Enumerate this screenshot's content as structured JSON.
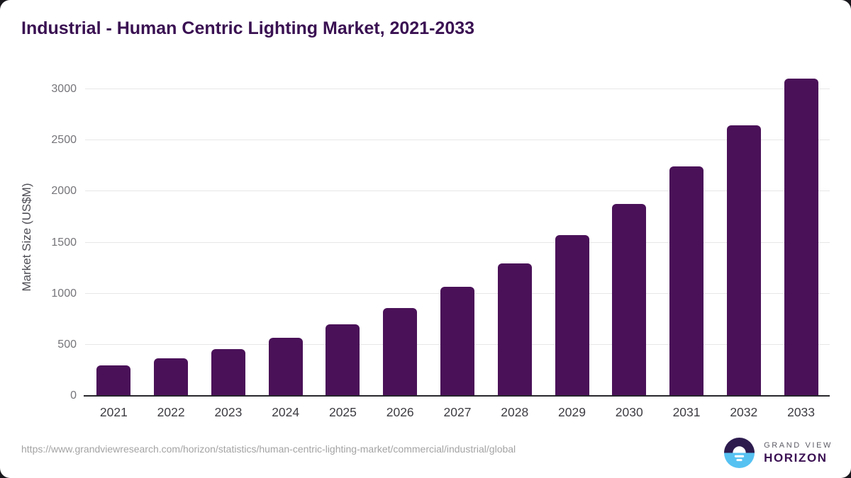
{
  "page": {
    "title": "Industrial - Human Centric Lighting Market, 2021-2033",
    "source_url": "https://www.grandviewresearch.com/horizon/statistics/human-centric-lighting-market/commercial/industrial/global",
    "background_color": "#17171c",
    "card_color": "#ffffff",
    "title_color": "#3a1152"
  },
  "brand": {
    "name_top": "GRAND VIEW",
    "name_bottom": "HORIZON",
    "logo_top_color": "#2d1b4e",
    "logo_bottom_color": "#56c2f2",
    "logo_sun_color": "#ffffff"
  },
  "chart_data": {
    "type": "bar",
    "title": "Industrial - Human Centric Lighting Market, 2021-2033",
    "categories": [
      "2021",
      "2022",
      "2023",
      "2024",
      "2025",
      "2026",
      "2027",
      "2028",
      "2029",
      "2030",
      "2031",
      "2032",
      "2033"
    ],
    "values": [
      295,
      370,
      455,
      570,
      700,
      860,
      1065,
      1295,
      1570,
      1880,
      2245,
      2645,
      3105
    ],
    "xlabel": "",
    "ylabel": "Market Size (US$M)",
    "yticks": [
      0,
      500,
      1000,
      1500,
      2000,
      2500,
      3000
    ],
    "ylim": [
      0,
      3000
    ],
    "bar_color": "#4a1158",
    "grid": true,
    "gridline_color": "#e7e7e7",
    "axis_line_color": "#26262c",
    "legend": "none"
  }
}
